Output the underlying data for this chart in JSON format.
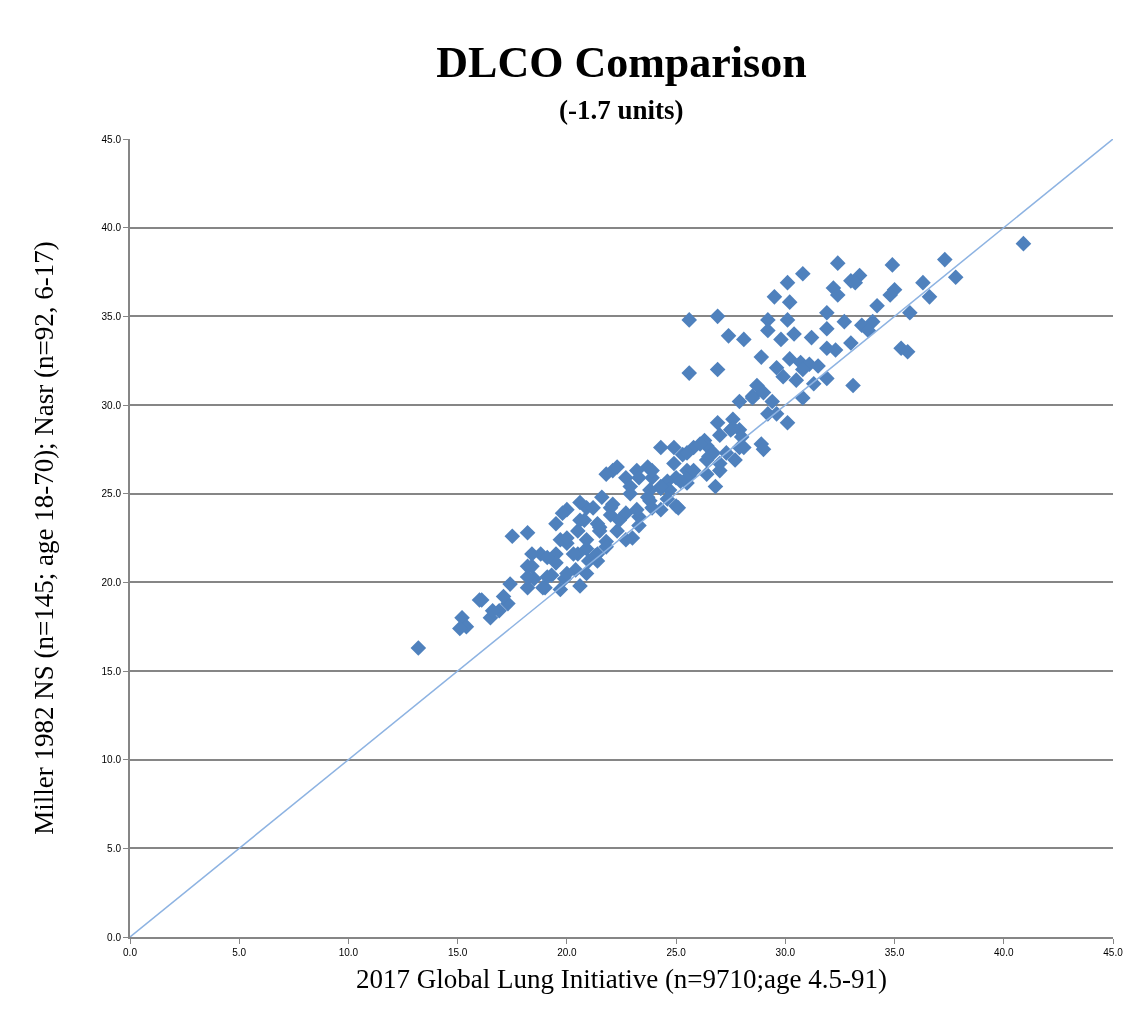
{
  "chart_data": {
    "type": "scatter",
    "title": "DLCO Comparison",
    "subtitle": "(-1.7 units)",
    "xlabel": "2017 Global Lung Initiative (n=9710;age 4.5-91)",
    "ylabel": "Miller 1982 NS (n=145; age 18-70); Nasr (n=92, 6-17)",
    "xlim": [
      0,
      45
    ],
    "ylim": [
      0,
      45
    ],
    "xticks": [
      {
        "value": 0,
        "label": "0.0"
      },
      {
        "value": 5,
        "label": "5.0"
      },
      {
        "value": 10,
        "label": "10.0"
      },
      {
        "value": 15,
        "label": "15.0"
      },
      {
        "value": 20,
        "label": "20.0"
      },
      {
        "value": 25,
        "label": "25.0"
      },
      {
        "value": 30,
        "label": "30.0"
      },
      {
        "value": 35,
        "label": "35.0"
      },
      {
        "value": 40,
        "label": "40.0"
      },
      {
        "value": 45,
        "label": "45.0"
      }
    ],
    "yticks": [
      {
        "value": 0,
        "label": "0.0"
      },
      {
        "value": 5,
        "label": "5.0"
      },
      {
        "value": 10,
        "label": "10.0"
      },
      {
        "value": 15,
        "label": "15.0"
      },
      {
        "value": 20,
        "label": "20.0"
      },
      {
        "value": 25,
        "label": "25.0"
      },
      {
        "value": 30,
        "label": "30.0"
      },
      {
        "value": 35,
        "label": "35.0"
      },
      {
        "value": 40,
        "label": "40.0"
      },
      {
        "value": 45,
        "label": "45.0"
      }
    ],
    "grid": "y",
    "series": [
      {
        "color": "#4f81bd",
        "marker": "diamond",
        "x": [
          40.9,
          37.3,
          37.8,
          36.3,
          36.6,
          35.7,
          35.0,
          34.8,
          34.2,
          35.3,
          35.6,
          34.9,
          32.4,
          33.0,
          33.4,
          33.2,
          32.2,
          32.4,
          30.8,
          30.1,
          29.5,
          30.2,
          31.9,
          26.9,
          25.6,
          29.2,
          30.1,
          32.7,
          33.5,
          34.0,
          33.8,
          27.4,
          28.1,
          29.2,
          29.8,
          30.4,
          31.2,
          31.9,
          33.0,
          31.9,
          32.3,
          28.9,
          26.9,
          25.6,
          29.6,
          30.2,
          30.7,
          31.1,
          29.9,
          30.5,
          30.8,
          31.5,
          31.3,
          31.9,
          33.1,
          28.7,
          28.5,
          27.9,
          29.4,
          29.6,
          29.2,
          30.1,
          30.8,
          29.0,
          28.5,
          26.9,
          27.6,
          27.5,
          27.9,
          28.0,
          28.9,
          29.0,
          27.7,
          28.1,
          26.8,
          26.3,
          26.5,
          27.0,
          26.4,
          26.4,
          25.8,
          26.7,
          27.0,
          24.3,
          24.9,
          25.3,
          25.5,
          25.0,
          24.6,
          25.5,
          25.1,
          23.7,
          23.9,
          24.3,
          23.8,
          22.1,
          22.7,
          23.2,
          22.9,
          21.6,
          20.0,
          20.9,
          22.0,
          22.7,
          23.3,
          23.9,
          19.5,
          20.5,
          21.4,
          22.3,
          23.0,
          20.0,
          20.9,
          21.8,
          20.5,
          21.4,
          17.5,
          18.2,
          18.8,
          13.2,
          15.2,
          15.4,
          15.1,
          16.0,
          16.5,
          16.9,
          17.3,
          17.1,
          17.4,
          18.2,
          18.2,
          18.5,
          19.0,
          19.3,
          19.7,
          19.9,
          20.4,
          20.6,
          21.0,
          21.3,
          19.5,
          19.7,
          20.8,
          21.5,
          22.0,
          22.7,
          23.3,
          23.8,
          24.3,
          25.0,
          24.7,
          25.6,
          22.3,
          19.8,
          21.8,
          18.4,
          18.2,
          16.6,
          16.1,
          19.1,
          19.5,
          18.9,
          20.0,
          20.3,
          20.0,
          20.6,
          20.9,
          21.2,
          21.5,
          21.8,
          22.1,
          22.4,
          22.9,
          23.2,
          23.3,
          23.7,
          23.9,
          24.3,
          24.6,
          24.9,
          25.2,
          25.5,
          25.8,
          26.1,
          26.4,
          27.0,
          27.3,
          27.6,
          27.9,
          20.9,
          21.4,
          18.4,
          20.6,
          19.1
        ],
        "values": [
          39.1,
          38.2,
          37.2,
          36.9,
          36.1,
          35.2,
          36.5,
          36.2,
          35.6,
          33.2,
          33.0,
          37.9,
          38.0,
          37.0,
          37.3,
          36.9,
          36.6,
          36.2,
          37.4,
          36.9,
          36.1,
          35.8,
          35.2,
          35.0,
          34.8,
          34.8,
          34.8,
          34.7,
          34.5,
          34.7,
          34.2,
          33.9,
          33.7,
          34.2,
          33.7,
          34.0,
          33.8,
          34.3,
          33.5,
          33.2,
          33.1,
          32.7,
          32.0,
          31.8,
          32.1,
          32.6,
          32.4,
          32.3,
          31.6,
          31.4,
          32.0,
          32.2,
          31.2,
          31.5,
          31.1,
          31.1,
          30.5,
          30.2,
          30.2,
          29.5,
          29.5,
          29.0,
          30.4,
          30.7,
          30.4,
          29.0,
          29.2,
          28.6,
          28.6,
          28.2,
          27.8,
          27.5,
          26.9,
          27.6,
          25.4,
          28.0,
          27.1,
          26.3,
          26.1,
          27.7,
          27.6,
          27.3,
          26.7,
          27.6,
          27.6,
          27.2,
          26.3,
          25.9,
          25.7,
          25.6,
          24.2,
          26.5,
          25.9,
          25.3,
          25.2,
          26.3,
          25.9,
          26.3,
          25.4,
          24.8,
          24.1,
          24.2,
          24.2,
          23.9,
          23.7,
          24.2,
          23.3,
          22.9,
          23.3,
          22.9,
          22.5,
          22.2,
          21.9,
          22.3,
          21.6,
          21.6,
          22.6,
          22.8,
          21.6,
          16.3,
          18.0,
          17.5,
          17.4,
          19.0,
          18.0,
          18.4,
          18.8,
          19.2,
          19.9,
          20.9,
          19.7,
          20.2,
          19.7,
          20.4,
          19.6,
          20.2,
          20.7,
          19.8,
          21.2,
          21.5,
          21.6,
          22.4,
          23.5,
          22.9,
          23.8,
          22.4,
          23.2,
          24.6,
          24.1,
          24.3,
          25.2,
          26.0,
          26.5,
          23.9,
          26.1,
          20.9,
          20.3,
          18.4,
          19.0,
          20.3,
          21.1,
          19.7,
          20.5,
          21.6,
          22.5,
          23.5,
          22.4,
          24.2,
          23.1,
          22.0,
          24.4,
          23.5,
          25.0,
          24.1,
          25.9,
          24.8,
          26.3,
          25.4,
          24.7,
          26.7,
          25.7,
          27.3,
          26.3,
          27.8,
          26.9,
          28.3,
          27.3,
          28.7,
          27.6,
          20.5,
          21.2,
          21.6,
          24.5,
          21.4
        ]
      },
      {
        "type": "line",
        "color": "#8db3e2",
        "x": [
          0,
          45
        ],
        "values": [
          0,
          45
        ]
      }
    ]
  }
}
